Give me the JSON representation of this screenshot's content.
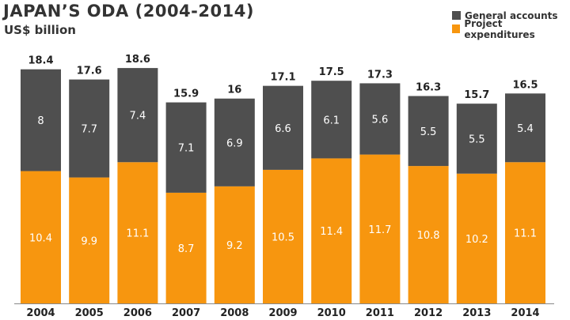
{
  "chart_data": {
    "type": "bar",
    "stacked": true,
    "title": "JAPAN’S ODA (2004-2014)",
    "subtitle": "US$ billion",
    "xlabel": "",
    "ylabel": "",
    "ylim": [
      0,
      19.5
    ],
    "grid": false,
    "legend_position": "top-right",
    "categories": [
      "2004",
      "2005",
      "2006",
      "2007",
      "2008",
      "2009",
      "2010",
      "2011",
      "2012",
      "2013",
      "2014"
    ],
    "series": [
      {
        "name": "Project expenditures",
        "color": "#f7960f",
        "values": [
          10.4,
          9.9,
          11.1,
          8.7,
          9.2,
          10.5,
          11.4,
          11.7,
          10.8,
          10.2,
          11.1
        ],
        "labels": [
          "10.4",
          "9.9",
          "11.1",
          "8.7",
          "9.2",
          "10.5",
          "11.4",
          "11.7",
          "10.8",
          "10.2",
          "11.1"
        ]
      },
      {
        "name": "General accounts",
        "color": "#4f4f4f",
        "values": [
          8,
          7.7,
          7.4,
          7.1,
          6.9,
          6.6,
          6.1,
          5.6,
          5.5,
          5.5,
          5.4
        ],
        "labels": [
          "8",
          "7.7",
          "7.4",
          "7.1",
          "6.9",
          "6.6",
          "6.1",
          "5.6",
          "5.5",
          "5.5",
          "5.4"
        ]
      }
    ],
    "totals": [
      "18.4",
      "17.6",
      "18.6",
      "15.9",
      "16",
      "17.1",
      "17.5",
      "17.3",
      "16.3",
      "15.7",
      "16.5"
    ]
  },
  "legend": [
    {
      "label": "General accounts",
      "color": "#4f4f4f"
    },
    {
      "label": "Project expenditures",
      "color": "#f7960f"
    }
  ]
}
